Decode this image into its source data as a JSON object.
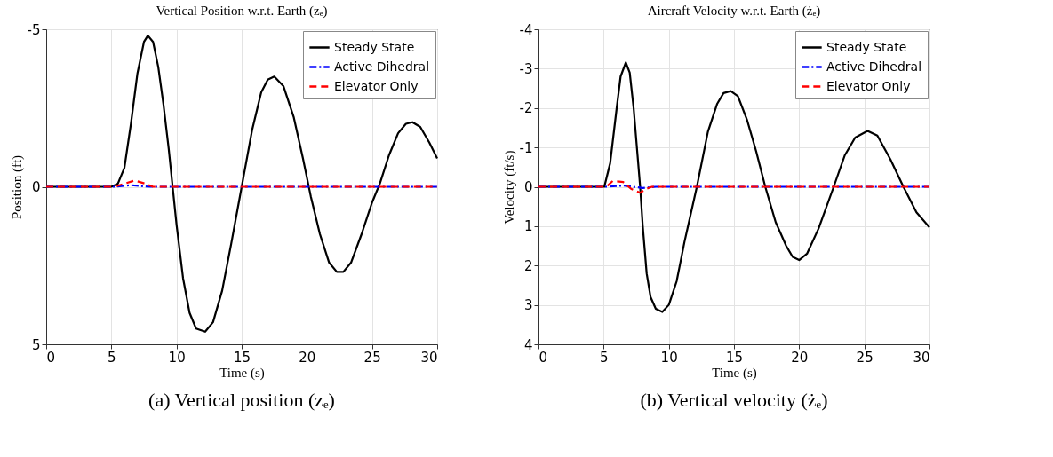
{
  "chart_data": [
    {
      "type": "line",
      "title": "Vertical Position w.r.t. Earth (zₑ)",
      "xlabel": "Time (s)",
      "ylabel": "Position (ft)",
      "xlim": [
        0,
        30
      ],
      "xticks": [
        0,
        5,
        10,
        15,
        20,
        25,
        30
      ],
      "ylim": [
        5,
        -5
      ],
      "yticks": [
        -5,
        0,
        5
      ],
      "grid": true,
      "legend": "top right",
      "annotations": [
        "(a) Vertical position (zₑ)"
      ],
      "series": [
        {
          "name": "Steady State",
          "color": "#000000",
          "line_style": "solid",
          "x": [
            0,
            5,
            5.5,
            6,
            6.5,
            7,
            7.5,
            7.8,
            8.2,
            8.6,
            9,
            9.4,
            9.7,
            10,
            10.5,
            11,
            11.5,
            12.2,
            12.8,
            13.5,
            14.2,
            15,
            15.8,
            16.5,
            17,
            17.5,
            18.2,
            19,
            19.7,
            20.3,
            21,
            21.7,
            22.3,
            22.8,
            23.4,
            24.2,
            25,
            25.6,
            26.3,
            27,
            27.6,
            28.1,
            28.7,
            29.4,
            30
          ],
          "values": [
            0,
            0,
            -0.1,
            -0.6,
            -2.0,
            -3.6,
            -4.6,
            -4.8,
            -4.6,
            -3.8,
            -2.6,
            -1.2,
            0,
            1.2,
            2.9,
            4.0,
            4.5,
            4.6,
            4.3,
            3.3,
            1.8,
            0,
            -1.8,
            -3.0,
            -3.4,
            -3.5,
            -3.2,
            -2.2,
            -0.9,
            0.3,
            1.5,
            2.4,
            2.7,
            2.7,
            2.4,
            1.5,
            0.5,
            -0.1,
            -1.0,
            -1.7,
            -2.0,
            -2.05,
            -1.9,
            -1.4,
            -0.9
          ]
        },
        {
          "name": "Active Dihedral",
          "color": "#0000ff",
          "line_style": "dashdot",
          "x": [
            0,
            5.2,
            6.5,
            8,
            30
          ],
          "values": [
            0,
            0,
            -0.05,
            0,
            0
          ]
        },
        {
          "name": "Elevator Only",
          "color": "#ff0000",
          "line_style": "dashed",
          "x": [
            0,
            5.2,
            6,
            6.8,
            7.6,
            8.2,
            30
          ],
          "values": [
            0,
            0,
            -0.1,
            -0.2,
            -0.1,
            0,
            0
          ]
        }
      ]
    },
    {
      "type": "line",
      "title": "Aircraft Velocity w.r.t. Earth (żₑ)",
      "xlabel": "Time (s)",
      "ylabel": "Velocity (ft/s)",
      "xlim": [
        0,
        30
      ],
      "xticks": [
        0,
        5,
        10,
        15,
        20,
        25,
        30
      ],
      "ylim": [
        4,
        -4
      ],
      "yticks": [
        -4,
        -3,
        -2,
        -1,
        0,
        1,
        2,
        3,
        4
      ],
      "grid": true,
      "legend": "top right",
      "annotations": [
        "(b) Vertical velocity (żₑ)"
      ],
      "series": [
        {
          "name": "Steady State",
          "color": "#000000",
          "line_style": "solid",
          "x": [
            0,
            5.05,
            5.5,
            6,
            6.3,
            6.7,
            7,
            7.3,
            7.6,
            7.8,
            8,
            8.3,
            8.6,
            9,
            9.5,
            10,
            10.6,
            11.2,
            12.15,
            13,
            13.7,
            14.2,
            14.75,
            15.3,
            16,
            16.7,
            17.4,
            18.2,
            19,
            19.5,
            20,
            20.6,
            21.5,
            22.65,
            23.5,
            24.3,
            25.25,
            26,
            27,
            28,
            29,
            30
          ],
          "values": [
            0,
            0,
            -0.6,
            -2.0,
            -2.8,
            -3.16,
            -2.9,
            -2.0,
            -0.8,
            0,
            1.0,
            2.2,
            2.8,
            3.1,
            3.18,
            3.0,
            2.4,
            1.4,
            0,
            -1.4,
            -2.1,
            -2.38,
            -2.43,
            -2.3,
            -1.7,
            -0.9,
            0,
            0.9,
            1.5,
            1.78,
            1.86,
            1.7,
            1.05,
            0,
            -0.8,
            -1.25,
            -1.42,
            -1.3,
            -0.7,
            0,
            0.65,
            1.03
          ]
        },
        {
          "name": "Active Dihedral",
          "color": "#0000ff",
          "line_style": "dashdot",
          "x": [
            0,
            5.2,
            6.5,
            8,
            9,
            30
          ],
          "values": [
            0,
            0,
            -0.03,
            0.03,
            0,
            0
          ]
        },
        {
          "name": "Elevator Only",
          "color": "#ff0000",
          "line_style": "dashed",
          "x": [
            0,
            5.2,
            5.7,
            6.5,
            7.1,
            7.8,
            8.3,
            8.7,
            30
          ],
          "values": [
            0,
            0,
            -0.15,
            -0.12,
            0.05,
            0.15,
            0.05,
            0,
            0
          ]
        }
      ]
    }
  ]
}
